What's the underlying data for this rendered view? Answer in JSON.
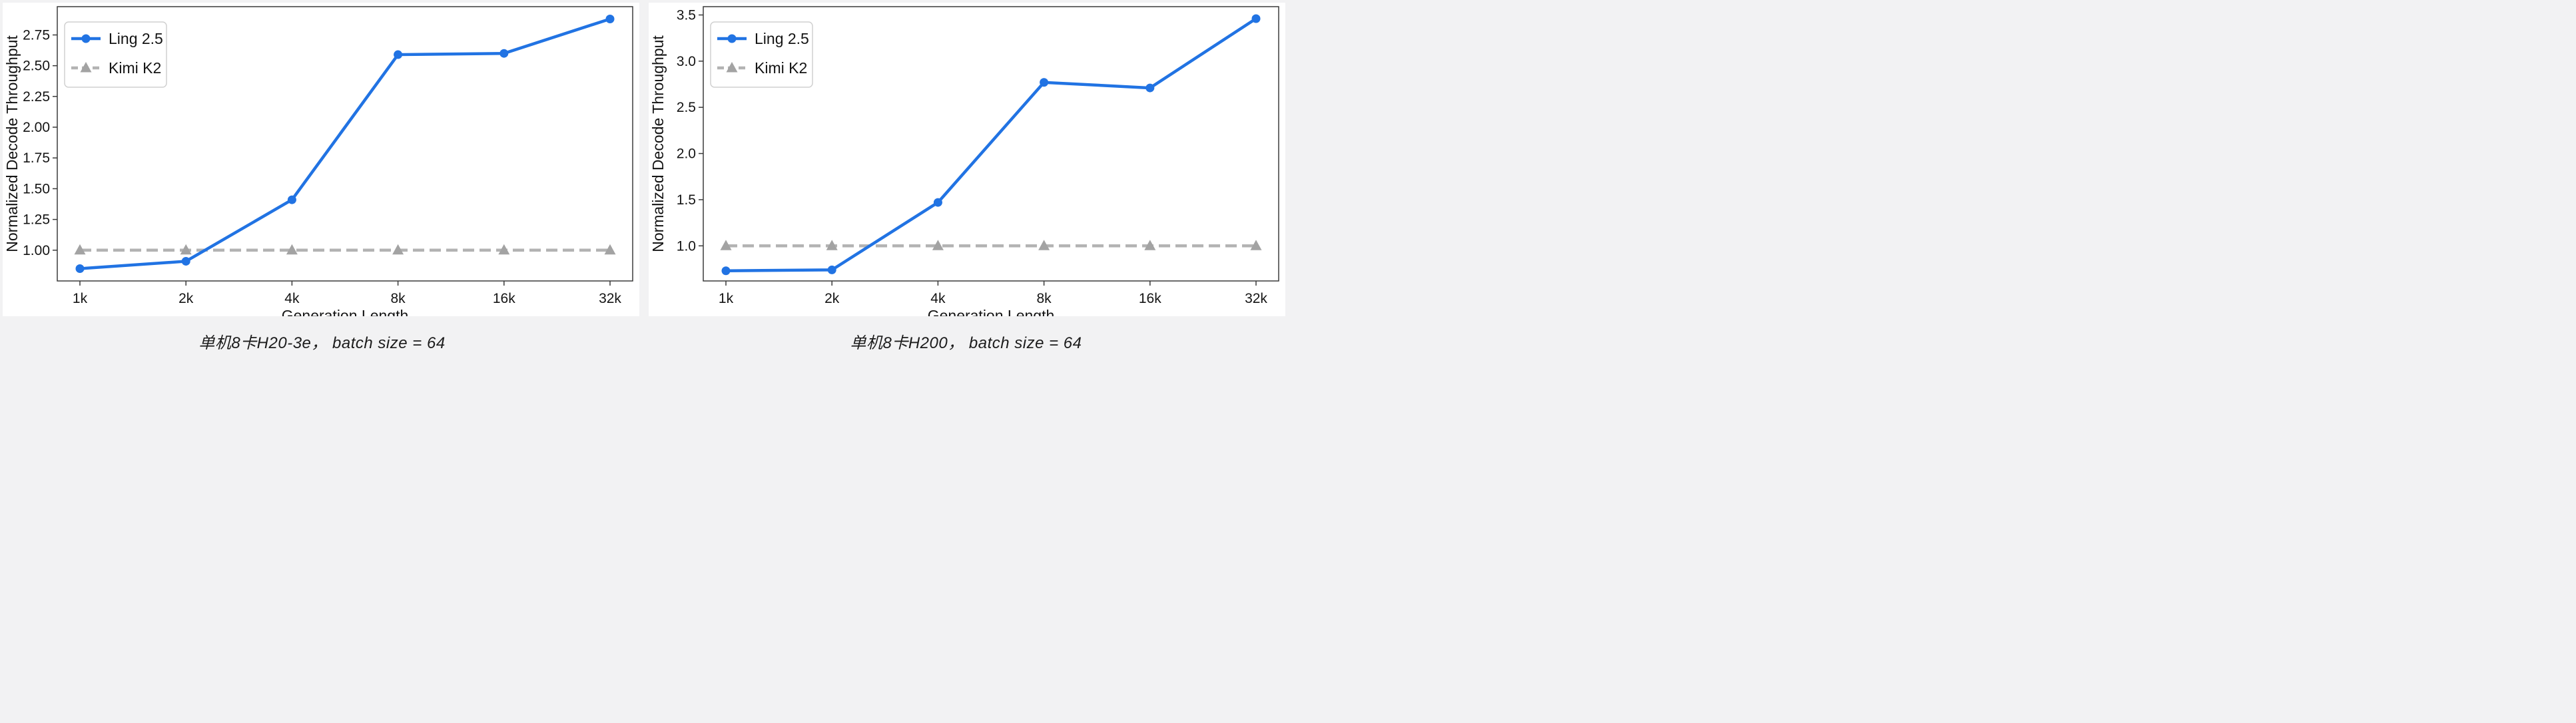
{
  "page": {
    "background_color": "#f2f2f3",
    "panel_color": "#ffffff",
    "axis_color": "#3a3a3a",
    "text_color": "#141414"
  },
  "chart_data": [
    {
      "id": "h20-3e",
      "type": "line",
      "title": "",
      "xlabel": "Generation Length",
      "ylabel": "Normalized Decode Throughput",
      "categories": [
        "1k",
        "2k",
        "4k",
        "8k",
        "16k",
        "32k"
      ],
      "series": [
        {
          "name": "Ling 2.5",
          "color": "#2173e3",
          "line": "solid",
          "marker": "circle",
          "values": [
            0.85,
            0.91,
            1.41,
            2.59,
            2.6,
            2.88
          ]
        },
        {
          "name": "Kimi K2",
          "color": "#b3b3b3",
          "marker_color": "#a3a3a3",
          "line": "dashed",
          "marker": "triangle",
          "values": [
            1.0,
            1.0,
            1.0,
            1.0,
            1.0,
            1.0
          ]
        }
      ],
      "ylim": [
        0.75,
        2.98
      ],
      "yticks": [
        {
          "label": "1.00",
          "value": 1.0
        },
        {
          "label": "1.25",
          "value": 1.25
        },
        {
          "label": "1.50",
          "value": 1.5
        },
        {
          "label": "1.75",
          "value": 1.75
        },
        {
          "label": "2.00",
          "value": 2.0
        },
        {
          "label": "2.25",
          "value": 2.25
        },
        {
          "label": "2.50",
          "value": 2.5
        },
        {
          "label": "2.75",
          "value": 2.75
        }
      ],
      "legend_position": "upper left",
      "grid": false,
      "caption": "单机8卡H20-3e， batch size = 64"
    },
    {
      "id": "h200",
      "type": "line",
      "title": "",
      "xlabel": "Generation Length",
      "ylabel": "Normalized Decode Throughput",
      "categories": [
        "1k",
        "2k",
        "4k",
        "8k",
        "16k",
        "32k"
      ],
      "series": [
        {
          "name": "Ling 2.5",
          "color": "#2173e3",
          "line": "solid",
          "marker": "circle",
          "values": [
            0.73,
            0.74,
            1.47,
            2.77,
            2.71,
            3.46
          ]
        },
        {
          "name": "Kimi K2",
          "color": "#b3b3b3",
          "marker_color": "#a3a3a3",
          "line": "dashed",
          "marker": "triangle",
          "values": [
            1.0,
            1.0,
            1.0,
            1.0,
            1.0,
            1.0
          ]
        }
      ],
      "ylim": [
        0.62,
        3.59
      ],
      "yticks": [
        {
          "label": "1.0",
          "value": 1.0
        },
        {
          "label": "1.5",
          "value": 1.5
        },
        {
          "label": "2.0",
          "value": 2.0
        },
        {
          "label": "2.5",
          "value": 2.5
        },
        {
          "label": "3.0",
          "value": 3.0
        },
        {
          "label": "3.5",
          "value": 3.5
        }
      ],
      "legend_position": "upper left",
      "grid": false,
      "caption": "单机8卡H200， batch size = 64"
    }
  ]
}
